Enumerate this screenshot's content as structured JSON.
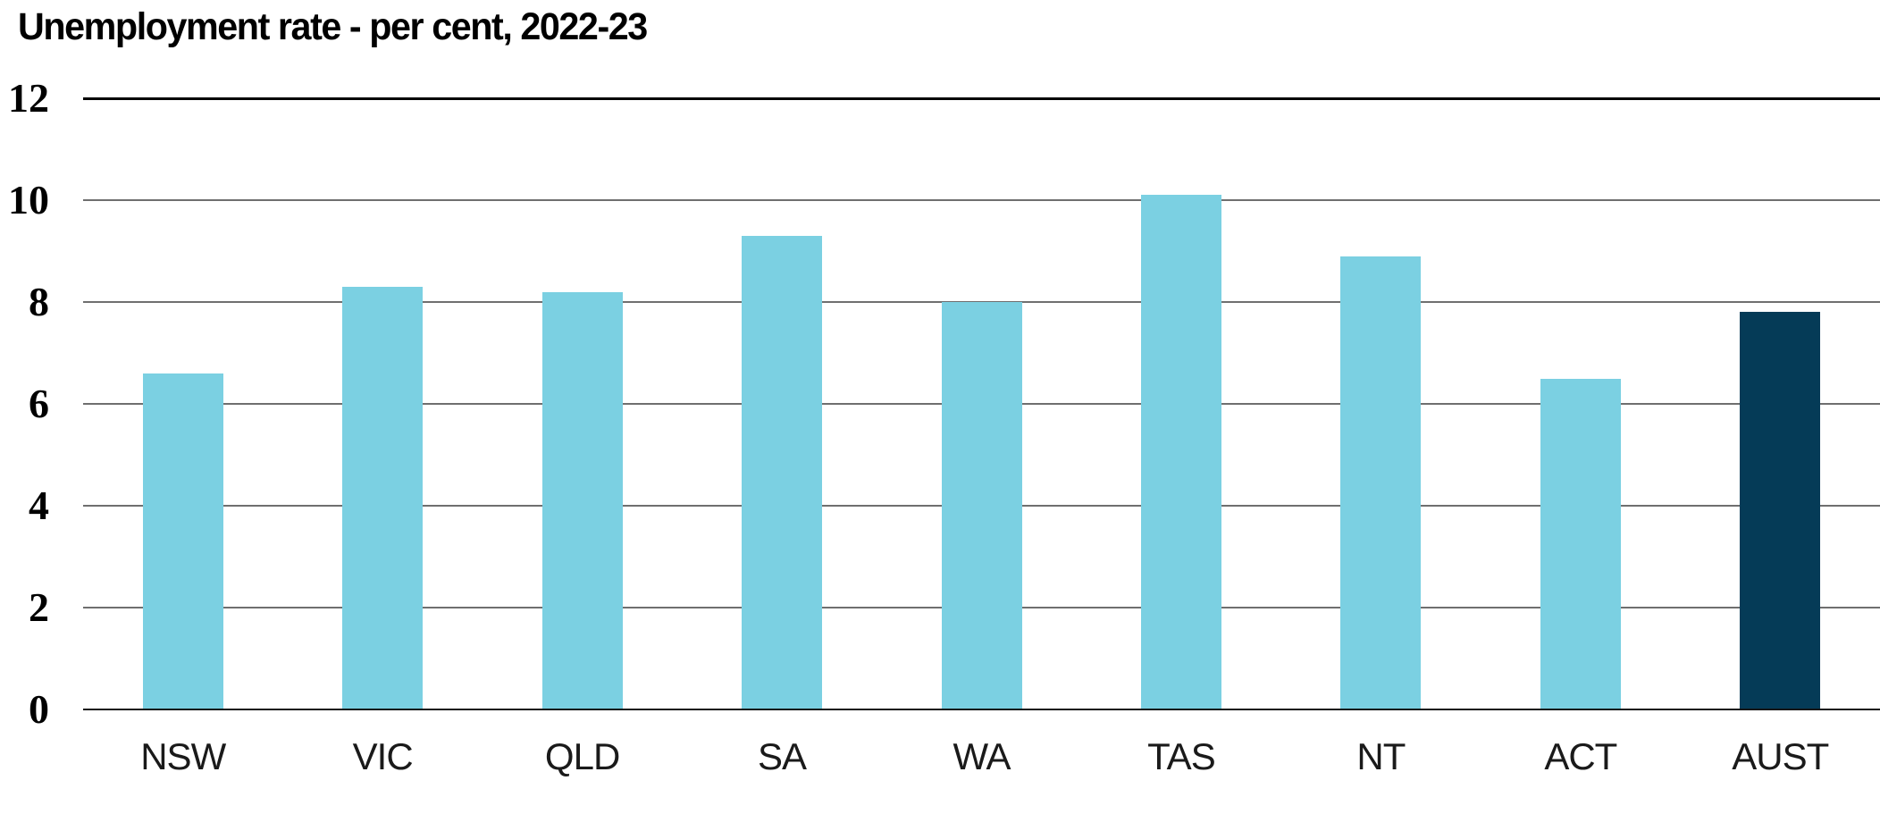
{
  "chart_data": {
    "type": "bar",
    "title": "Unemployment rate - per cent, 2022-23",
    "categories": [
      "NSW",
      "VIC",
      "QLD",
      "SA",
      "WA",
      "TAS",
      "NT",
      "ACT",
      "AUST"
    ],
    "values": [
      6.6,
      8.3,
      8.2,
      9.3,
      8.0,
      10.1,
      8.9,
      6.5,
      7.8
    ],
    "highlight_category": "AUST",
    "bar_color": "#7BD0E2",
    "highlight_color": "#053B57",
    "gridline_color": "#6F6F6F",
    "top_gridline_color": "#000000",
    "baseline_color": "#161616",
    "ylim": [
      0,
      12
    ],
    "yticks": [
      0,
      2,
      4,
      6,
      8,
      10,
      12
    ],
    "grid": "horizontal",
    "legend": "none",
    "xlabel": "",
    "ylabel": ""
  }
}
